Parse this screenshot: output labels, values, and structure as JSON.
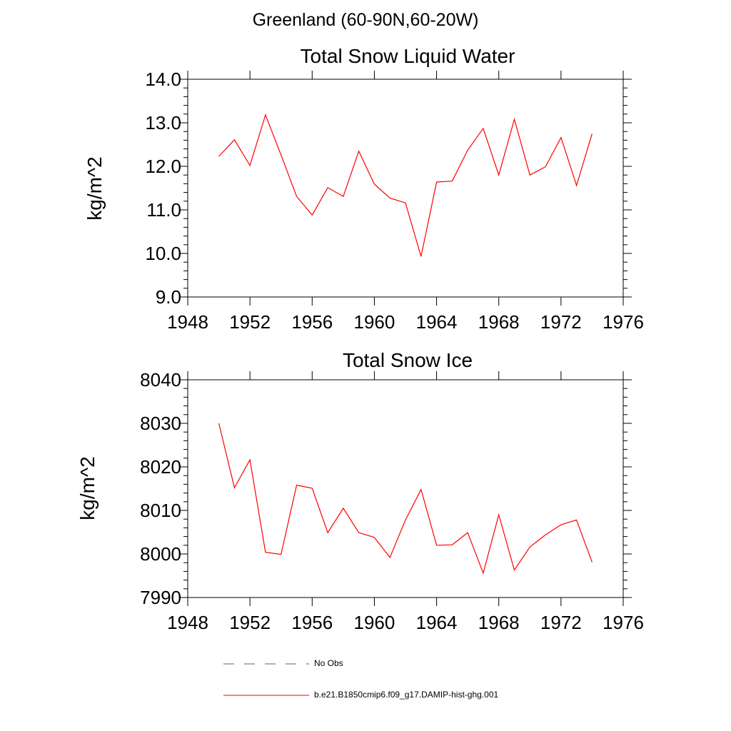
{
  "suptitle": "Greenland (60-90N,60-20W)",
  "chart_data": [
    {
      "type": "line",
      "title": "Total Snow Liquid Water",
      "xlabel": "",
      "ylabel": "kg/m^2",
      "xlim": [
        1948,
        1976
      ],
      "ylim": [
        9.0,
        14.0
      ],
      "xticks": [
        "1948",
        "1952",
        "1956",
        "1960",
        "1964",
        "1968",
        "1972",
        "1976"
      ],
      "yticks": [
        "9.0",
        "10.0",
        "11.0",
        "12.0",
        "13.0",
        "14.0"
      ],
      "grid": false,
      "series": [
        {
          "name": "b.e21.B1850cmip6.f09_g17.DAMIP-hist-ghg.001",
          "color": "#ff0000",
          "x": [
            1950,
            1951,
            1952,
            1953,
            1954,
            1955,
            1956,
            1957,
            1958,
            1959,
            1960,
            1961,
            1962,
            1963,
            1964,
            1965,
            1966,
            1967,
            1968,
            1969,
            1970,
            1971,
            1972,
            1973,
            1974
          ],
          "values": [
            12.23,
            12.61,
            12.02,
            13.18,
            12.26,
            11.31,
            10.88,
            11.51,
            11.31,
            12.35,
            11.59,
            11.27,
            11.16,
            9.93,
            11.64,
            11.66,
            12.37,
            12.87,
            11.8,
            13.08,
            11.8,
            11.99,
            12.66,
            11.56,
            12.75
          ]
        }
      ]
    },
    {
      "type": "line",
      "title": "Total Snow Ice",
      "xlabel": "",
      "ylabel": "kg/m^2",
      "xlim": [
        1948,
        1976
      ],
      "ylim": [
        7990,
        8040
      ],
      "xticks": [
        "1948",
        "1952",
        "1956",
        "1960",
        "1964",
        "1968",
        "1972",
        "1976"
      ],
      "yticks": [
        "7990",
        "8000",
        "8010",
        "8020",
        "8030",
        "8040"
      ],
      "grid": false,
      "series": [
        {
          "name": "b.e21.B1850cmip6.f09_g17.DAMIP-hist-ghg.001",
          "color": "#ff0000",
          "x": [
            1950,
            1951,
            1952,
            1953,
            1954,
            1955,
            1956,
            1957,
            1958,
            1959,
            1960,
            1961,
            1962,
            1963,
            1964,
            1965,
            1966,
            1967,
            1968,
            1969,
            1970,
            1971,
            1972,
            1973,
            1974
          ],
          "values": [
            8030.0,
            8015.2,
            8021.6,
            8000.4,
            7999.9,
            8015.8,
            8015.1,
            8004.9,
            8010.5,
            8004.9,
            8003.8,
            7999.2,
            8007.8,
            8014.8,
            8002.0,
            8002.1,
            8004.9,
            7995.6,
            8009.0,
            7996.3,
            8001.6,
            8004.4,
            8006.7,
            8007.8,
            7998.1
          ]
        }
      ]
    }
  ],
  "legend": {
    "items": [
      {
        "label": "No Obs",
        "style": "dashed",
        "color": "#5a5a8c"
      },
      {
        "label": "b.e21.B1850cmip6.f09_g17.DAMIP-hist-ghg.001",
        "style": "solid",
        "color": "#ff0000"
      }
    ]
  }
}
